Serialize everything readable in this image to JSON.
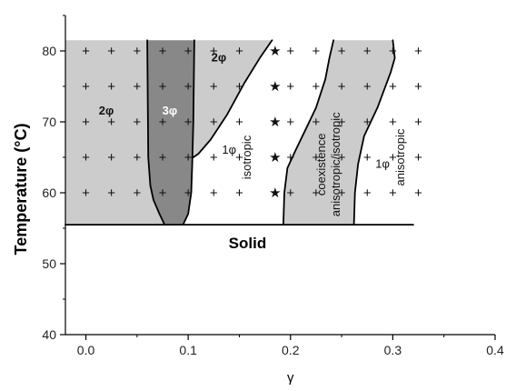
{
  "chart_data": {
    "type": "scatter",
    "xlabel": "γ",
    "ylabel": "Temperature (°C)",
    "xlim": [
      -0.02,
      0.4
    ],
    "ylim": [
      40,
      85
    ],
    "xticks": [
      "0.0",
      "0.1",
      "0.2",
      "0.3",
      "0.4"
    ],
    "yticks": [
      "40",
      "50",
      "60",
      "70",
      "80"
    ],
    "solid_boundary_T": 55.5,
    "region_labels": [
      {
        "text": "2φ",
        "x": 0.02,
        "y": 71,
        "style": "bold"
      },
      {
        "text": "3φ",
        "x": 0.082,
        "y": 71,
        "style": "white"
      },
      {
        "text": "2φ",
        "x": 0.13,
        "y": 78.5,
        "style": "bold"
      },
      {
        "text": "1φ",
        "x": 0.14,
        "y": 65.5,
        "style": "normal"
      },
      {
        "text": "isotropic",
        "x": 0.158,
        "y": 65,
        "style": "vertical"
      },
      {
        "text": "coexistence",
        "x": 0.231,
        "y": 64,
        "style": "vertical"
      },
      {
        "text": "anisotropic/isotropic",
        "x": 0.245,
        "y": 64,
        "style": "vertical"
      },
      {
        "text": "1φ",
        "x": 0.29,
        "y": 63.5,
        "style": "normal"
      },
      {
        "text": "anisotropic",
        "x": 0.308,
        "y": 65,
        "style": "vertical"
      },
      {
        "text": "Solid",
        "x": 0.158,
        "y": 52.2,
        "style": "bold"
      }
    ],
    "series": [
      {
        "marker": "+",
        "points": [
          [
            0.0,
            80
          ],
          [
            0.0,
            75
          ],
          [
            0.0,
            70
          ],
          [
            0.0,
            65
          ],
          [
            0.0,
            60
          ],
          [
            0.025,
            80
          ],
          [
            0.025,
            75
          ],
          [
            0.025,
            70
          ],
          [
            0.025,
            65
          ],
          [
            0.025,
            60
          ],
          [
            0.05,
            80
          ],
          [
            0.05,
            75
          ],
          [
            0.05,
            70
          ],
          [
            0.05,
            65
          ],
          [
            0.05,
            60
          ],
          [
            0.075,
            80
          ],
          [
            0.075,
            75
          ],
          [
            0.075,
            70
          ],
          [
            0.075,
            65
          ],
          [
            0.075,
            60
          ],
          [
            0.1,
            80
          ],
          [
            0.1,
            75
          ],
          [
            0.1,
            70
          ],
          [
            0.1,
            65
          ],
          [
            0.1,
            60
          ],
          [
            0.125,
            80
          ],
          [
            0.125,
            75
          ],
          [
            0.125,
            70
          ],
          [
            0.125,
            65
          ],
          [
            0.125,
            60
          ],
          [
            0.15,
            80
          ],
          [
            0.15,
            75
          ],
          [
            0.15,
            70
          ],
          [
            0.15,
            65
          ],
          [
            0.15,
            60
          ],
          [
            0.2,
            80
          ],
          [
            0.2,
            75
          ],
          [
            0.2,
            70
          ],
          [
            0.2,
            65
          ],
          [
            0.2,
            60
          ],
          [
            0.225,
            80
          ],
          [
            0.225,
            75
          ],
          [
            0.225,
            70
          ],
          [
            0.225,
            65
          ],
          [
            0.225,
            60
          ],
          [
            0.25,
            80
          ],
          [
            0.25,
            75
          ],
          [
            0.25,
            70
          ],
          [
            0.25,
            65
          ],
          [
            0.25,
            60
          ],
          [
            0.275,
            80
          ],
          [
            0.275,
            75
          ],
          [
            0.275,
            70
          ],
          [
            0.275,
            65
          ],
          [
            0.275,
            60
          ],
          [
            0.3,
            80
          ],
          [
            0.3,
            75
          ],
          [
            0.3,
            70
          ],
          [
            0.3,
            65
          ],
          [
            0.3,
            60
          ],
          [
            0.325,
            80
          ],
          [
            0.325,
            75
          ],
          [
            0.325,
            70
          ],
          [
            0.325,
            65
          ],
          [
            0.325,
            60
          ]
        ]
      },
      {
        "marker": "★",
        "points": [
          [
            0.185,
            80
          ],
          [
            0.185,
            75
          ],
          [
            0.185,
            70
          ],
          [
            0.185,
            65
          ],
          [
            0.185,
            60
          ]
        ]
      }
    ],
    "regions": [
      {
        "phase": "2φ",
        "fill": "#cccccc",
        "polygon": [
          [
            -0.02,
            55.5
          ],
          [
            -0.02,
            81.5
          ],
          [
            0.06,
            81.5
          ],
          [
            0.061,
            65
          ],
          [
            0.063,
            61
          ],
          [
            0.066,
            59
          ],
          [
            0.072,
            57
          ],
          [
            0.077,
            55.5
          ]
        ]
      },
      {
        "phase": "3φ",
        "fill": "#888888",
        "polygon": [
          [
            0.06,
            81.5
          ],
          [
            0.106,
            81.5
          ],
          [
            0.105,
            70
          ],
          [
            0.104,
            64
          ],
          [
            0.103,
            60
          ],
          [
            0.1,
            57
          ],
          [
            0.095,
            55.5
          ],
          [
            0.077,
            55.5
          ],
          [
            0.072,
            57
          ],
          [
            0.066,
            59
          ],
          [
            0.063,
            61
          ],
          [
            0.061,
            65
          ]
        ]
      },
      {
        "phase": "2φ",
        "fill": "#cccccc",
        "polygon": [
          [
            0.106,
            81.5
          ],
          [
            0.182,
            81.5
          ],
          [
            0.17,
            79
          ],
          [
            0.155,
            75.5
          ],
          [
            0.138,
            71
          ],
          [
            0.122,
            67.5
          ],
          [
            0.11,
            65.5
          ],
          [
            0.105,
            65
          ],
          [
            0.105,
            70
          ]
        ]
      },
      {
        "phase": "coexistence",
        "fill": "#cccccc",
        "polygon": [
          [
            0.242,
            81.5
          ],
          [
            0.3,
            81.5
          ],
          [
            0.302,
            79
          ],
          [
            0.298,
            77
          ],
          [
            0.285,
            72
          ],
          [
            0.272,
            68
          ],
          [
            0.266,
            64
          ],
          [
            0.263,
            60
          ],
          [
            0.262,
            55.5
          ],
          [
            0.193,
            55.5
          ],
          [
            0.194,
            60
          ],
          [
            0.197,
            63.5
          ],
          [
            0.205,
            66
          ],
          [
            0.215,
            69
          ],
          [
            0.225,
            72
          ],
          [
            0.234,
            76
          ],
          [
            0.238,
            79
          ]
        ]
      }
    ],
    "boundaries": [
      [
        [
          0.06,
          81.5
        ],
        [
          0.061,
          65
        ],
        [
          0.063,
          61
        ],
        [
          0.066,
          59
        ],
        [
          0.072,
          57
        ],
        [
          0.077,
          55.5
        ]
      ],
      [
        [
          0.106,
          81.5
        ],
        [
          0.105,
          70
        ],
        [
          0.104,
          64
        ],
        [
          0.103,
          60
        ],
        [
          0.1,
          57
        ],
        [
          0.095,
          55.5
        ]
      ],
      [
        [
          0.105,
          65
        ],
        [
          0.11,
          65.5
        ],
        [
          0.122,
          67.5
        ],
        [
          0.138,
          71
        ],
        [
          0.155,
          75.5
        ],
        [
          0.17,
          79
        ],
        [
          0.182,
          81.5
        ]
      ],
      [
        [
          0.193,
          55.5
        ],
        [
          0.194,
          60
        ],
        [
          0.197,
          63.5
        ],
        [
          0.205,
          66
        ],
        [
          0.215,
          69
        ],
        [
          0.225,
          72
        ],
        [
          0.234,
          76
        ],
        [
          0.238,
          79
        ],
        [
          0.242,
          81.5
        ]
      ],
      [
        [
          0.262,
          55.5
        ],
        [
          0.263,
          60
        ],
        [
          0.266,
          64
        ],
        [
          0.272,
          68
        ],
        [
          0.285,
          72
        ],
        [
          0.298,
          77
        ],
        [
          0.302,
          79
        ],
        [
          0.3,
          81.5
        ]
      ],
      [
        [
          -0.02,
          55.5
        ],
        [
          0.32,
          55.5
        ]
      ]
    ],
    "grid": false,
    "legend": "none"
  }
}
